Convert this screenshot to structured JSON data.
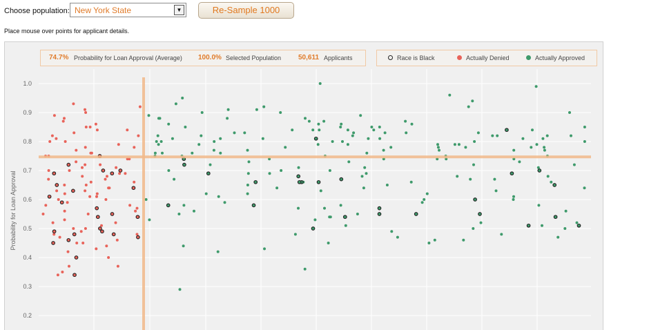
{
  "controls": {
    "population_label": "Choose population:",
    "population_value": "New York State",
    "resample_label": "Re-Sample 1000",
    "instructions": "Place mouse over points for applicant details."
  },
  "stats": {
    "avg_probability": "74.7%",
    "avg_probability_label": "Probability for Loan Approval (Average)",
    "selected": "100.0%",
    "selected_label": "Selected Population",
    "applicants": "50,611",
    "applicants_label": "Applicants"
  },
  "legend": {
    "black": "Race is Black",
    "denied": "Actually Denied",
    "approved": "Actually Approved"
  },
  "colors": {
    "denied": "#e8635a",
    "approved": "#3e9a6b",
    "accent": "#f2b98a",
    "highlight": "#e07b2a"
  },
  "chart_data": {
    "type": "scatter",
    "title": "",
    "xlabel": "",
    "ylabel": "Probability for Loan Approval",
    "ylim": [
      0.15,
      1.05
    ],
    "yticks": [
      "1.0",
      "0.9",
      "0.8",
      "0.7",
      "0.6",
      "0.5",
      "0.4",
      "0.3",
      "0.2"
    ],
    "grid": true,
    "average_line_y": 0.747,
    "denied_fraction": 0.19,
    "series": [
      {
        "name": "Actually Denied",
        "color": "#e8635a",
        "y": [
          0.85,
          0.84,
          0.82,
          0.8,
          0.78,
          0.76,
          0.75,
          0.74,
          0.72,
          0.71,
          0.7,
          0.69,
          0.68,
          0.67,
          0.66,
          0.65,
          0.64,
          0.63,
          0.62,
          0.61,
          0.6,
          0.58,
          0.56,
          0.54,
          0.52,
          0.5,
          0.48,
          0.47,
          0.45,
          0.43,
          0.4,
          0.37,
          0.34,
          0.92,
          0.9,
          0.88,
          0.86,
          0.83,
          0.81,
          0.79,
          0.77,
          0.73,
          0.7,
          0.66,
          0.62,
          0.58,
          0.55,
          0.53,
          0.51,
          0.49,
          0.46,
          0.44,
          0.89,
          0.87,
          0.85,
          0.8,
          0.75,
          0.68,
          0.64,
          0.6,
          0.57,
          0.93,
          0.91,
          0.76,
          0.72,
          0.69,
          0.65,
          0.63,
          0.59,
          0.56,
          0.52,
          0.48,
          0.42,
          0.37,
          0.84,
          0.82,
          0.78,
          0.74,
          0.71,
          0.67,
          0.61,
          0.55,
          0.5,
          0.45,
          0.35
        ]
      },
      {
        "name": "Actually Approved",
        "color": "#3e9a6b",
        "y": [
          1.0,
          0.96,
          0.94,
          0.92,
          0.9,
          0.89,
          0.88,
          0.87,
          0.86,
          0.85,
          0.85,
          0.84,
          0.84,
          0.83,
          0.83,
          0.82,
          0.82,
          0.81,
          0.81,
          0.8,
          0.8,
          0.79,
          0.79,
          0.78,
          0.78,
          0.77,
          0.77,
          0.76,
          0.76,
          0.75,
          0.75,
          0.74,
          0.74,
          0.73,
          0.72,
          0.71,
          0.7,
          0.69,
          0.68,
          0.67,
          0.66,
          0.65,
          0.64,
          0.63,
          0.62,
          0.61,
          0.6,
          0.59,
          0.58,
          0.57,
          0.56,
          0.55,
          0.54,
          0.53,
          0.52,
          0.51,
          0.5,
          0.48,
          0.47,
          0.46,
          0.45,
          0.43,
          0.36,
          0.29,
          0.99,
          0.95,
          0.93,
          0.91,
          0.9,
          0.88,
          0.86,
          0.85,
          0.84,
          0.83,
          0.82,
          0.81,
          0.8,
          0.79,
          0.78,
          0.77,
          0.76,
          0.75,
          0.74,
          0.73,
          0.72,
          0.71,
          0.7,
          0.69,
          0.68,
          0.67,
          0.66,
          0.65,
          0.64,
          0.62,
          0.6,
          0.58,
          0.55,
          0.52,
          0.49,
          0.46,
          0.84,
          0.83,
          0.82,
          0.81,
          0.8,
          0.79,
          0.78,
          0.86,
          0.87,
          0.82,
          0.8,
          0.79,
          0.77,
          0.75,
          0.81,
          0.83,
          0.85,
          0.78,
          0.76,
          0.82,
          0.84,
          0.8,
          0.79,
          0.88,
          0.74,
          0.73,
          0.72,
          0.7,
          0.68,
          0.66,
          0.63,
          0.61,
          0.59,
          0.57,
          0.54,
          0.51,
          0.47,
          0.44,
          0.42,
          0.89,
          0.91,
          0.87,
          0.85,
          0.84,
          0.82,
          0.81,
          0.8,
          0.79,
          0.78,
          0.77,
          0.76,
          0.75,
          0.83,
          0.86,
          0.88,
          0.9,
          0.92,
          0.81,
          0.79,
          0.77,
          0.74,
          0.71,
          0.69,
          0.67,
          0.64,
          0.62,
          0.6,
          0.58,
          0.56,
          0.53,
          0.5,
          0.48,
          0.45
        ]
      }
    ],
    "race_black_y": [
      0.61,
      0.59,
      0.49,
      0.48,
      0.5,
      0.47,
      0.46,
      0.4,
      0.63,
      0.65,
      0.64,
      0.7,
      0.7,
      0.69,
      0.72,
      0.75,
      0.69,
      0.55,
      0.54,
      0.49,
      0.48,
      0.34,
      0.57,
      0.54,
      0.45,
      0.66,
      0.69,
      0.6,
      0.57,
      0.55,
      0.55,
      0.81,
      0.72,
      0.69,
      0.5,
      0.65,
      0.55,
      0.54,
      0.54,
      0.51,
      0.67,
      0.74,
      0.7,
      0.68,
      0.66,
      0.58,
      0.58,
      0.66,
      0.66,
      0.51,
      0.84
    ]
  }
}
